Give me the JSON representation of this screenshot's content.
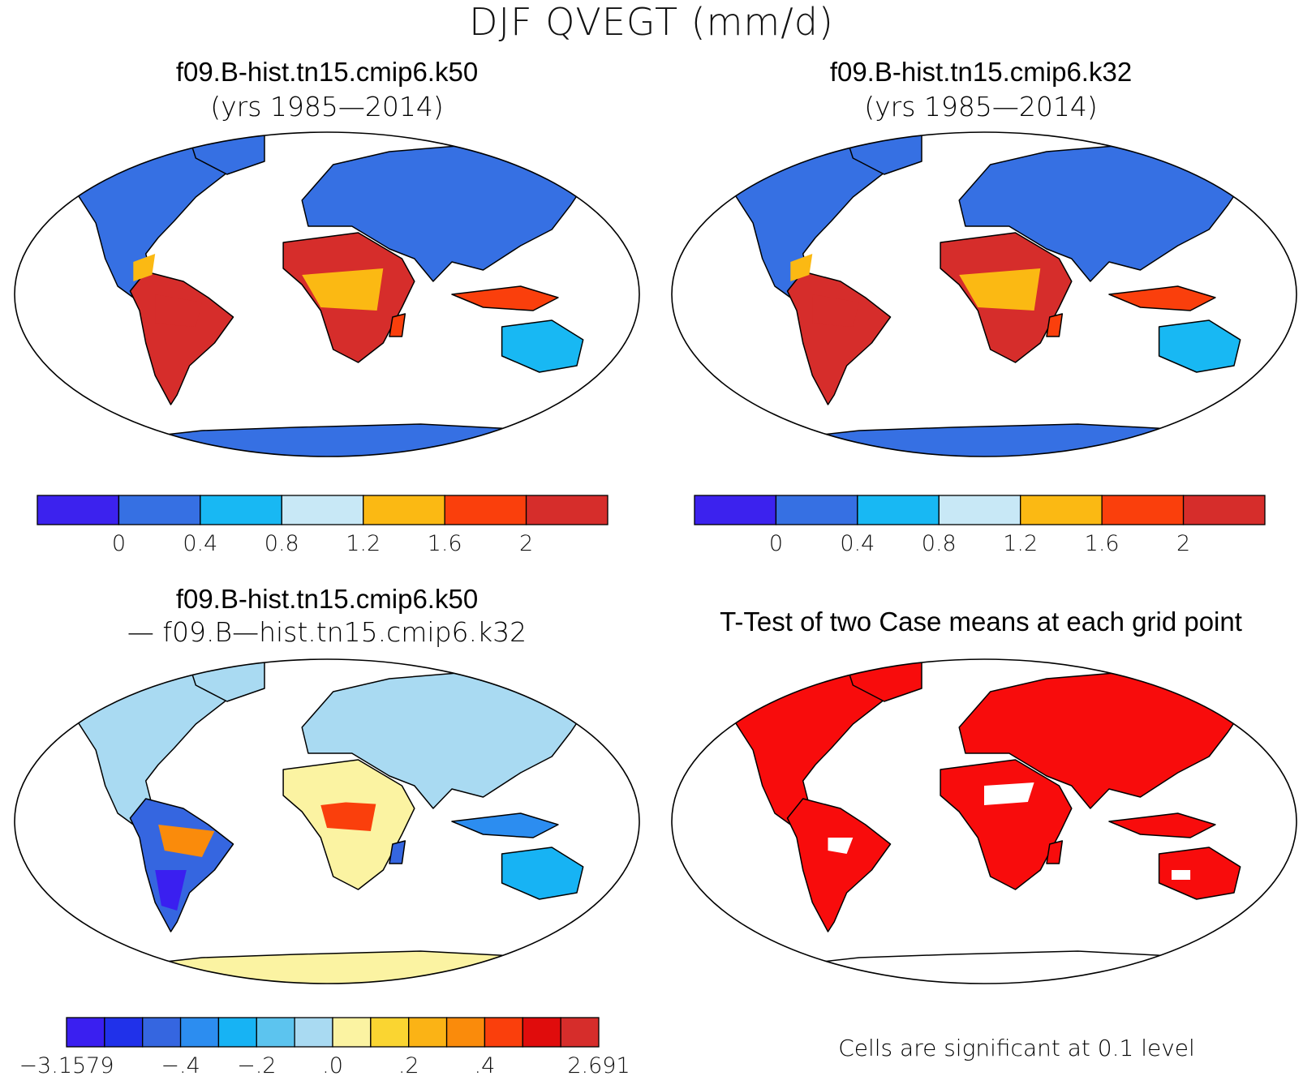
{
  "figure_title": "DJF QVEGT (mm/d)",
  "panels": [
    {
      "id": "case1",
      "title": "f09.B-hist.tn15.cmip6.k50",
      "subtitle": "(yrs 1985—2014)"
    },
    {
      "id": "case2",
      "title": "f09.B-hist.tn15.cmip6.k32",
      "subtitle": "(yrs 1985—2014)"
    },
    {
      "id": "diff",
      "title": "f09.B-hist.tn15.cmip6.k50",
      "subtitle": "— f09.B—hist.tn15.cmip6.k32"
    },
    {
      "id": "ttest",
      "title": "T-Test of two Case means at each grid point",
      "subtitle": ""
    }
  ],
  "colorbars": {
    "abs": {
      "colors": [
        "#3c22ee",
        "#3670e3",
        "#18b8f3",
        "#c8e8f6",
        "#fbb913",
        "#fa3f0c",
        "#d62d2b"
      ],
      "labels": [
        "0",
        "0.4",
        "0.8",
        "1.2",
        "1.6",
        "2"
      ]
    },
    "diff": {
      "colors": [
        "#3a1ff0",
        "#2031ea",
        "#3566e0",
        "#2c8df0",
        "#17b3f4",
        "#5cc4ef",
        "#a9daf2",
        "#fbf3a2",
        "#fad531",
        "#fbb315",
        "#fa8b0b",
        "#fa3f0c",
        "#e00c0c",
        "#d62d2b"
      ],
      "labels": [
        "−3.1579",
        "−.4",
        "−.2",
        ".0",
        ".2",
        ".4",
        "2.691"
      ]
    }
  },
  "significance_note": "Cells are significant at 0.1 level",
  "map_colors": {
    "ocean": "#ffffff",
    "land_outline": "#000000",
    "significant": "#f80c0c"
  }
}
